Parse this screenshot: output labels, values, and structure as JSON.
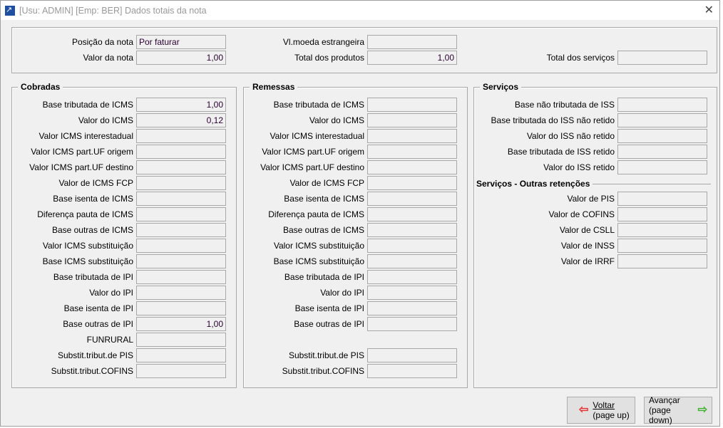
{
  "window": {
    "title": "[Usu: ADMIN] [Emp: BER] Dados totais da nota",
    "close": "✕"
  },
  "header": {
    "posicao": {
      "label": "Posição da nota",
      "value": "Por faturar"
    },
    "valor_nota": {
      "label": "Valor da nota",
      "value": "1,00"
    },
    "vl_moeda": {
      "label": "Vl.moeda estrangeira",
      "value": ""
    },
    "total_produtos": {
      "label": "Total dos produtos",
      "value": "1,00"
    },
    "total_servicos": {
      "label": "Total dos serviços",
      "value": ""
    }
  },
  "cobradas": {
    "title": "Cobradas",
    "rows": [
      {
        "label": "Base tributada de ICMS",
        "value": "1,00"
      },
      {
        "label": "Valor do ICMS",
        "value": "0,12"
      },
      {
        "label": "Valor ICMS interestadual",
        "value": ""
      },
      {
        "label": "Valor ICMS part.UF origem",
        "value": ""
      },
      {
        "label": "Valor ICMS part.UF destino",
        "value": ""
      },
      {
        "label": "Valor de ICMS FCP",
        "value": ""
      },
      {
        "label": "Base isenta de ICMS",
        "value": ""
      },
      {
        "label": "Diferença pauta de ICMS",
        "value": ""
      },
      {
        "label": "Base outras de ICMS",
        "value": ""
      },
      {
        "label": "Valor ICMS substituição",
        "value": ""
      },
      {
        "label": "Base ICMS substituição",
        "value": ""
      },
      {
        "label": "Base tributada de IPI",
        "value": ""
      },
      {
        "label": "Valor do IPI",
        "value": ""
      },
      {
        "label": "Base isenta de IPI",
        "value": ""
      },
      {
        "label": "Base outras de IPI",
        "value": "1,00"
      },
      {
        "label": "FUNRURAL",
        "value": ""
      },
      {
        "label": "Substit.tribut.de PIS",
        "value": ""
      },
      {
        "label": "Substit.tribut.COFINS",
        "value": ""
      }
    ]
  },
  "remessas": {
    "title": "Remessas",
    "rows": [
      {
        "label": "Base tributada de ICMS",
        "value": ""
      },
      {
        "label": "Valor do ICMS",
        "value": ""
      },
      {
        "label": "Valor ICMS interestadual",
        "value": ""
      },
      {
        "label": "Valor ICMS part.UF origem",
        "value": ""
      },
      {
        "label": "Valor ICMS part.UF destino",
        "value": ""
      },
      {
        "label": "Valor de ICMS FCP",
        "value": ""
      },
      {
        "label": "Base isenta de ICMS",
        "value": ""
      },
      {
        "label": "Diferença pauta de ICMS",
        "value": ""
      },
      {
        "label": "Base outras de ICMS",
        "value": ""
      },
      {
        "label": "Valor ICMS substituição",
        "value": ""
      },
      {
        "label": "Base ICMS substituição",
        "value": ""
      },
      {
        "label": "Base tributada de IPI",
        "value": ""
      },
      {
        "label": "Valor do IPI",
        "value": ""
      },
      {
        "label": "Base isenta de IPI",
        "value": ""
      },
      {
        "label": "Base outras de IPI",
        "value": ""
      },
      null,
      {
        "label": "Substit.tribut.de PIS",
        "value": ""
      },
      {
        "label": "Substit.tribut.COFINS",
        "value": ""
      }
    ]
  },
  "servicos": {
    "title": "Serviços",
    "rows": [
      {
        "label": "Base não tributada de ISS",
        "value": ""
      },
      {
        "label": "Base tributada do ISS não retido",
        "value": ""
      },
      {
        "label": "Valor do ISS não retido",
        "value": ""
      },
      {
        "label": "Base tributada de ISS retido",
        "value": ""
      },
      {
        "label": "Valor do ISS retido",
        "value": ""
      }
    ],
    "outras_title": "Serviços - Outras retenções",
    "outras_rows": [
      {
        "label": "Valor de PIS",
        "value": ""
      },
      {
        "label": "Valor de COFINS",
        "value": ""
      },
      {
        "label": "Valor de CSLL",
        "value": ""
      },
      {
        "label": "Valor de INSS",
        "value": ""
      },
      {
        "label": "Valor de IRRF",
        "value": ""
      }
    ]
  },
  "buttons": {
    "voltar": {
      "line1": "Voltar",
      "line2": "(page up)",
      "icon": "arrow-left-red",
      "color": "#e83030"
    },
    "avancar": {
      "line1": "Avançar",
      "line2": "(page down)",
      "icon": "arrow-right-green",
      "color": "#40b030"
    }
  }
}
